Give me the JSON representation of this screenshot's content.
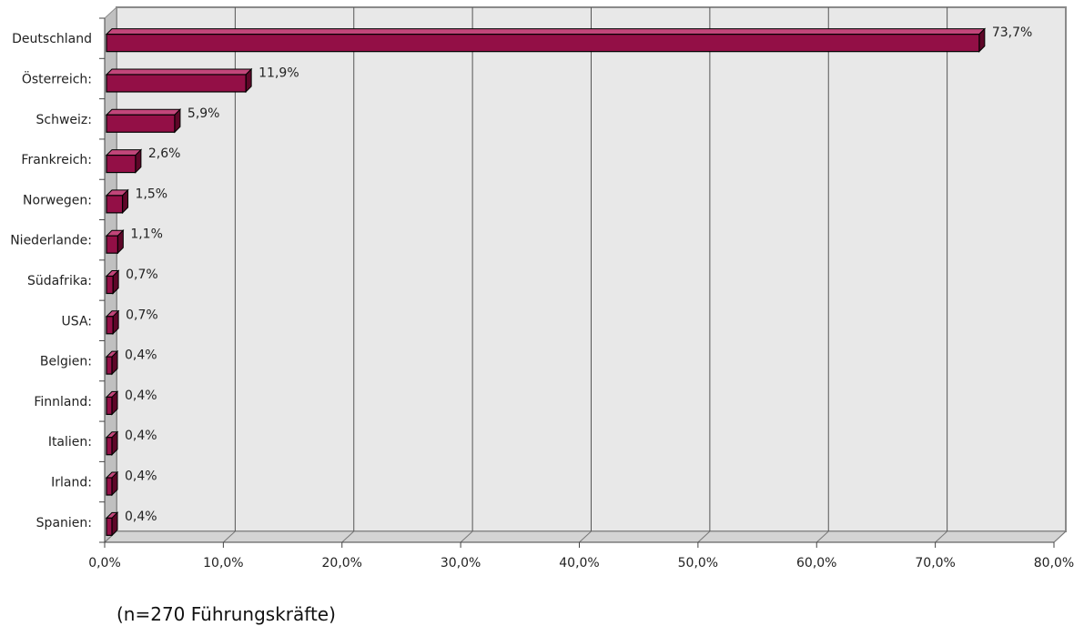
{
  "chart_data": {
    "type": "bar",
    "orientation": "horizontal",
    "style": "3d",
    "categories": [
      "Deutschland",
      "Österreich:",
      "Schweiz:",
      "Frankreich:",
      "Norwegen:",
      "Niederlande:",
      "Südafrika:",
      "USA:",
      "Belgien:",
      "Finnland:",
      "Italien:",
      "Irland:",
      "Spanien:"
    ],
    "values": [
      73.7,
      11.9,
      5.9,
      2.6,
      1.5,
      1.1,
      0.7,
      0.7,
      0.4,
      0.4,
      0.4,
      0.4,
      0.4
    ],
    "value_labels": [
      "73,7%",
      "11,9%",
      "5,9%",
      "2,6%",
      "1,5%",
      "1,1%",
      "0,7%",
      "0,7%",
      "0,4%",
      "0,4%",
      "0,4%",
      "0,4%",
      "0,4%"
    ],
    "x_ticks": [
      "0,0%",
      "10,0%",
      "20,0%",
      "30,0%",
      "40,0%",
      "50,0%",
      "60,0%",
      "70,0%",
      "80,0%"
    ],
    "xlim": [
      0,
      80
    ],
    "grid": true,
    "colors": {
      "bar_front": "#930f46",
      "bar_top": "#c2467a",
      "bar_side": "#5e0628",
      "plot_wall": "#e8e8e8",
      "side_wall": "#c0c0c0",
      "floor": "#d4d4d4"
    }
  },
  "footnote": "(n=270 Führungskräfte)"
}
